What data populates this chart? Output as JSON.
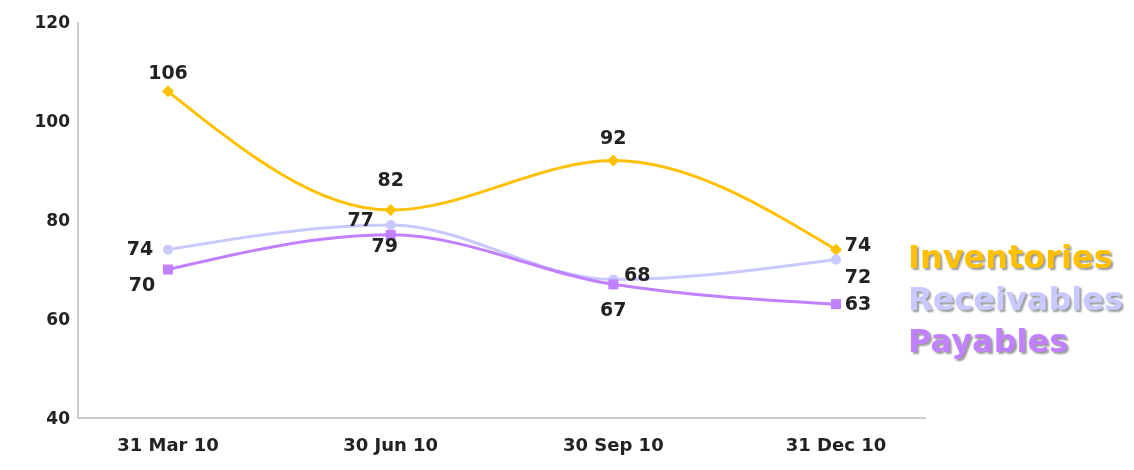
{
  "chart_data": {
    "type": "line",
    "categories": [
      "31 Mar 10",
      "30 Jun 10",
      "30 Sep 10",
      "31 Dec 10"
    ],
    "series": [
      {
        "name": "Inventories",
        "color": "#ffc000",
        "values": [
          106,
          82,
          92,
          74
        ],
        "marker": "diamond"
      },
      {
        "name": "Receivables",
        "color": "#c9c9ff",
        "values": [
          74,
          79,
          68,
          72
        ],
        "marker": "circle"
      },
      {
        "name": "Payables",
        "color": "#c080ff",
        "values": [
          70,
          77,
          67,
          63
        ],
        "marker": "square"
      }
    ],
    "ylim": [
      40,
      120
    ],
    "yticks": [
      40,
      60,
      80,
      100,
      120
    ],
    "legend": "right",
    "data_labels": true,
    "line_style": "solid"
  }
}
